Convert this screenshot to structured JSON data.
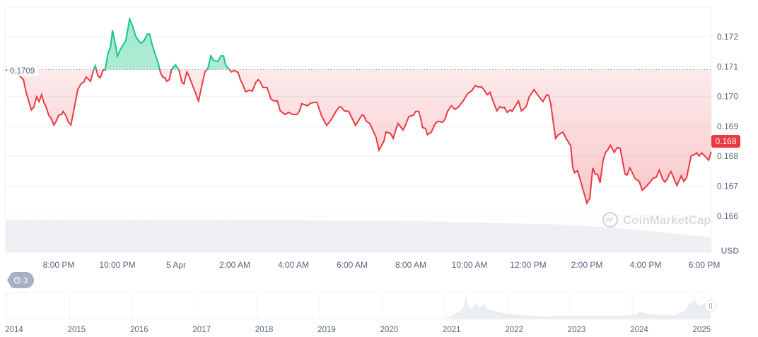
{
  "chart_data": {
    "type": "area",
    "currency": "USD",
    "baseline": 0.1709,
    "baseline_label": "0.1709",
    "current_price_label": "0.168",
    "ylim": [
      0.1654,
      0.1732
    ],
    "y_ticks": [
      "0.172",
      "0.171",
      "0.170",
      "0.169",
      "0.168",
      "0.167",
      "0.166"
    ],
    "y_tick_values": [
      0.172,
      0.171,
      0.17,
      0.169,
      0.168,
      0.167,
      0.166
    ],
    "x_ticks": [
      {
        "time": "20:00",
        "label": "8:00 PM"
      },
      {
        "time": "22:00",
        "label": "10:00 PM"
      },
      {
        "time": "00:00",
        "label": "5 Apr"
      },
      {
        "time": "02:00",
        "label": "2:00 AM"
      },
      {
        "time": "04:00",
        "label": "4:00 AM"
      },
      {
        "time": "06:00",
        "label": "6:00 AM"
      },
      {
        "time": "08:00",
        "label": "8:00 AM"
      },
      {
        "time": "10:00",
        "label": "10:00 AM"
      },
      {
        "time": "12:00",
        "label": "12:00 PM"
      },
      {
        "time": "14:00",
        "label": "2:00 PM"
      },
      {
        "time": "16:00",
        "label": "4:00 PM"
      },
      {
        "time": "18:00",
        "label": "6:00 PM"
      }
    ],
    "ylabel": "USD",
    "grid": true,
    "colors": {
      "up": "#16c784",
      "down": "#ea3943",
      "grid": "#eff2f5",
      "text": "#58667e"
    },
    "series": [
      [
        "18:12",
        0.17089
      ],
      [
        "18:29",
        0.17087
      ],
      [
        "18:48",
        0.17056
      ],
      [
        "18:53",
        0.17016
      ],
      [
        "19:04",
        0.16955
      ],
      [
        "19:09",
        0.16964
      ],
      [
        "19:15",
        0.16999
      ],
      [
        "19:20",
        0.16983
      ],
      [
        "19:25",
        0.17006
      ],
      [
        "19:30",
        0.16978
      ],
      [
        "19:34",
        0.16966
      ],
      [
        "19:40",
        0.16936
      ],
      [
        "19:44",
        0.16929
      ],
      [
        "19:50",
        0.16905
      ],
      [
        "19:54",
        0.16914
      ],
      [
        "20:00",
        0.16938
      ],
      [
        "20:06",
        0.1694
      ],
      [
        "20:09",
        0.1695
      ],
      [
        "20:14",
        0.16938
      ],
      [
        "20:20",
        0.16914
      ],
      [
        "20:25",
        0.16905
      ],
      [
        "20:29",
        0.16938
      ],
      [
        "20:39",
        0.17023
      ],
      [
        "20:46",
        0.17044
      ],
      [
        "20:51",
        0.17047
      ],
      [
        "20:56",
        0.17065
      ],
      [
        "21:05",
        0.17051
      ],
      [
        "21:11",
        0.17087
      ],
      [
        "21:15",
        0.17103
      ],
      [
        "21:20",
        0.1707
      ],
      [
        "21:25",
        0.17063
      ],
      [
        "21:31",
        0.17089
      ],
      [
        "21:35",
        0.17089
      ],
      [
        "21:41",
        0.17146
      ],
      [
        "21:46",
        0.17165
      ],
      [
        "21:50",
        0.17221
      ],
      [
        "21:56",
        0.17174
      ],
      [
        "22:00",
        0.17134
      ],
      [
        "22:06",
        0.17158
      ],
      [
        "22:12",
        0.17174
      ],
      [
        "22:17",
        0.17186
      ],
      [
        "22:25",
        0.17259
      ],
      [
        "22:30",
        0.1724
      ],
      [
        "22:38",
        0.172
      ],
      [
        "22:45",
        0.17183
      ],
      [
        "22:49",
        0.17179
      ],
      [
        "22:55",
        0.17188
      ],
      [
        "23:01",
        0.17209
      ],
      [
        "23:06",
        0.17209
      ],
      [
        "23:11",
        0.17174
      ],
      [
        "23:18",
        0.17139
      ],
      [
        "23:24",
        0.1711
      ],
      [
        "23:28",
        0.1708
      ],
      [
        "23:33",
        0.17065
      ],
      [
        "23:37",
        0.17063
      ],
      [
        "23:41",
        0.17051
      ],
      [
        "23:46",
        0.17056
      ],
      [
        "23:51",
        0.17091
      ],
      [
        "23:59",
        0.17106
      ],
      [
        "00:06",
        0.17089
      ],
      [
        "00:12",
        0.17047
      ],
      [
        "00:16",
        0.17042
      ],
      [
        "00:22",
        0.17082
      ],
      [
        "00:26",
        0.1707
      ],
      [
        "00:35",
        0.17032
      ],
      [
        "00:46",
        0.16985
      ],
      [
        "00:52",
        0.17032
      ],
      [
        "00:59",
        0.17082
      ],
      [
        "01:05",
        0.17094
      ],
      [
        "01:11",
        0.17136
      ],
      [
        "01:17",
        0.1712
      ],
      [
        "01:25",
        0.17117
      ],
      [
        "01:32",
        0.17136
      ],
      [
        "01:37",
        0.17136
      ],
      [
        "01:41",
        0.17106
      ],
      [
        "01:47",
        0.17094
      ],
      [
        "01:53",
        0.17082
      ],
      [
        "01:59",
        0.17087
      ],
      [
        "02:07",
        0.1708
      ],
      [
        "02:12",
        0.17054
      ],
      [
        "02:16",
        0.17042
      ],
      [
        "02:22",
        0.17016
      ],
      [
        "02:30",
        0.17021
      ],
      [
        "02:36",
        0.17018
      ],
      [
        "02:43",
        0.17047
      ],
      [
        "02:48",
        0.17056
      ],
      [
        "02:52",
        0.17049
      ],
      [
        "02:58",
        0.1703
      ],
      [
        "03:06",
        0.1703
      ],
      [
        "03:14",
        0.16992
      ],
      [
        "03:20",
        0.16985
      ],
      [
        "03:27",
        0.16985
      ],
      [
        "03:33",
        0.16952
      ],
      [
        "03:43",
        0.1694
      ],
      [
        "03:50",
        0.16947
      ],
      [
        "03:59",
        0.1694
      ],
      [
        "04:07",
        0.1694
      ],
      [
        "04:12",
        0.1695
      ],
      [
        "04:17",
        0.16976
      ],
      [
        "04:29",
        0.16969
      ],
      [
        "04:35",
        0.16978
      ],
      [
        "04:48",
        0.16981
      ],
      [
        "04:58",
        0.16933
      ],
      [
        "05:08",
        0.16903
      ],
      [
        "05:17",
        0.16922
      ],
      [
        "05:27",
        0.1695
      ],
      [
        "05:34",
        0.16966
      ],
      [
        "05:38",
        0.16964
      ],
      [
        "05:44",
        0.16952
      ],
      [
        "05:53",
        0.1695
      ],
      [
        "06:07",
        0.16903
      ],
      [
        "06:20",
        0.16938
      ],
      [
        "06:24",
        0.16936
      ],
      [
        "06:29",
        0.16917
      ],
      [
        "06:36",
        0.1691
      ],
      [
        "06:49",
        0.16863
      ],
      [
        "06:55",
        0.1682
      ],
      [
        "07:05",
        0.16851
      ],
      [
        "07:09",
        0.16881
      ],
      [
        "07:18",
        0.16877
      ],
      [
        "07:24",
        0.1686
      ],
      [
        "07:30",
        0.16893
      ],
      [
        "07:34",
        0.1691
      ],
      [
        "07:44",
        0.16888
      ],
      [
        "07:48",
        0.169
      ],
      [
        "07:56",
        0.16933
      ],
      [
        "08:06",
        0.16938
      ],
      [
        "08:10",
        0.1695
      ],
      [
        "08:16",
        0.1695
      ],
      [
        "08:20",
        0.16929
      ],
      [
        "08:24",
        0.16896
      ],
      [
        "08:30",
        0.16893
      ],
      [
        "08:34",
        0.16872
      ],
      [
        "08:42",
        0.16881
      ],
      [
        "08:50",
        0.1691
      ],
      [
        "08:56",
        0.16917
      ],
      [
        "09:05",
        0.16914
      ],
      [
        "09:10",
        0.16924
      ],
      [
        "09:15",
        0.1695
      ],
      [
        "09:23",
        0.16969
      ],
      [
        "09:30",
        0.16957
      ],
      [
        "09:37",
        0.16964
      ],
      [
        "09:47",
        0.16985
      ],
      [
        "09:57",
        0.17011
      ],
      [
        "10:04",
        0.17018
      ],
      [
        "10:12",
        0.17037
      ],
      [
        "10:17",
        0.17032
      ],
      [
        "10:25",
        0.17032
      ],
      [
        "10:30",
        0.17021
      ],
      [
        "10:36",
        0.17006
      ],
      [
        "10:42",
        0.17014
      ],
      [
        "10:48",
        0.16985
      ],
      [
        "10:56",
        0.16952
      ],
      [
        "11:02",
        0.16966
      ],
      [
        "11:07",
        0.16962
      ],
      [
        "11:11",
        0.16964
      ],
      [
        "11:17",
        0.16947
      ],
      [
        "11:24",
        0.16955
      ],
      [
        "11:27",
        0.1695
      ],
      [
        "11:33",
        0.16966
      ],
      [
        "11:40",
        0.16985
      ],
      [
        "11:46",
        0.16952
      ],
      [
        "11:50",
        0.16957
      ],
      [
        "11:56",
        0.16966
      ],
      [
        "12:02",
        0.16999
      ],
      [
        "12:12",
        0.17023
      ],
      [
        "12:23",
        0.16997
      ],
      [
        "12:30",
        0.16983
      ],
      [
        "12:38",
        0.17006
      ],
      [
        "12:42",
        0.17004
      ],
      [
        "12:46",
        0.16976
      ],
      [
        "12:56",
        0.1686
      ],
      [
        "13:02",
        0.16872
      ],
      [
        "13:11",
        0.16881
      ],
      [
        "13:18",
        0.16858
      ],
      [
        "13:21",
        0.16851
      ],
      [
        "13:27",
        0.16834
      ],
      [
        "13:31",
        0.16763
      ],
      [
        "13:35",
        0.16745
      ],
      [
        "13:41",
        0.16752
      ],
      [
        "14:00",
        0.16643
      ],
      [
        "14:06",
        0.1666
      ],
      [
        "14:12",
        0.16761
      ],
      [
        "14:17",
        0.1674
      ],
      [
        "14:22",
        0.1674
      ],
      [
        "14:27",
        0.16711
      ],
      [
        "14:33",
        0.16785
      ],
      [
        "14:38",
        0.16813
      ],
      [
        "14:43",
        0.16822
      ],
      [
        "14:48",
        0.16837
      ],
      [
        "14:56",
        0.16813
      ],
      [
        "15:02",
        0.16829
      ],
      [
        "15:08",
        0.16827
      ],
      [
        "15:18",
        0.1674
      ],
      [
        "15:22",
        0.16737
      ],
      [
        "15:28",
        0.16761
      ],
      [
        "15:31",
        0.16752
      ],
      [
        "15:38",
        0.16726
      ],
      [
        "15:47",
        0.16716
      ],
      [
        "15:53",
        0.16686
      ],
      [
        "16:00",
        0.16697
      ],
      [
        "16:07",
        0.16709
      ],
      [
        "16:15",
        0.16726
      ],
      [
        "16:22",
        0.1673
      ],
      [
        "16:28",
        0.16754
      ],
      [
        "16:35",
        0.16723
      ],
      [
        "16:39",
        0.16714
      ],
      [
        "16:44",
        0.16723
      ],
      [
        "16:49",
        0.16742
      ],
      [
        "16:52",
        0.16749
      ],
      [
        "17:04",
        0.16702
      ],
      [
        "17:13",
        0.16735
      ],
      [
        "17:18",
        0.16716
      ],
      [
        "17:24",
        0.16728
      ],
      [
        "17:33",
        0.16801
      ],
      [
        "17:40",
        0.16806
      ],
      [
        "17:45",
        0.16811
      ],
      [
        "17:49",
        0.16801
      ],
      [
        "17:55",
        0.16811
      ],
      [
        "18:02",
        0.16799
      ],
      [
        "18:09",
        0.16787
      ],
      [
        "18:14",
        0.16815
      ]
    ],
    "navigator_x_ticks": [
      "2014",
      "2015",
      "2016",
      "2017",
      "2018",
      "2019",
      "2020",
      "2021",
      "2022",
      "2023",
      "2024",
      "2025"
    ]
  },
  "watermark": "CoinMarketCap",
  "history_badge": {
    "icon": "history-clock-icon",
    "count": "3"
  }
}
